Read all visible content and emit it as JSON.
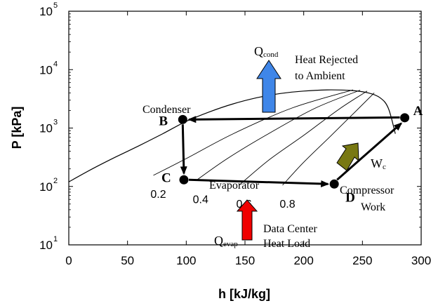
{
  "chart_data": {
    "type": "line",
    "xlabel": "h [kJ/kg]",
    "ylabel": "P [kPa]",
    "xlim": [
      0,
      300
    ],
    "ylim": [
      10,
      100000
    ],
    "y_scale": "log",
    "x_ticks": [
      "0",
      "50",
      "100",
      "150",
      "200",
      "250",
      "300"
    ],
    "y_ticks": [
      {
        "base": "10",
        "exp": "1"
      },
      {
        "base": "10",
        "exp": "2"
      },
      {
        "base": "10",
        "exp": "3"
      },
      {
        "base": "10",
        "exp": "4"
      },
      {
        "base": "10",
        "exp": "5"
      }
    ],
    "grid": false,
    "saturation_dome": {
      "x": [
        0,
        20,
        40,
        60,
        80,
        100,
        120,
        140,
        160,
        180,
        200,
        220,
        240,
        255,
        265,
        272,
        278
      ],
      "y": [
        120,
        200,
        320,
        500,
        800,
        1300,
        1900,
        2600,
        3300,
        3900,
        4300,
        4500,
        4400,
        4000,
        3300,
        2200,
        800
      ]
    },
    "quality_lines": [
      {
        "label": "0.2",
        "x": [
          72,
          100,
          140,
          190,
          242
        ],
        "y": [
          155,
          300,
          800,
          2200,
          4500
        ]
      },
      {
        "label": "0.4",
        "x": [
          108,
          135,
          170,
          210,
          248
        ],
        "y": [
          125,
          300,
          800,
          2200,
          4450
        ]
      },
      {
        "label": "0.6",
        "x": [
          145,
          170,
          200,
          230,
          254
        ],
        "y": [
          105,
          280,
          750,
          2100,
          4300
        ]
      },
      {
        "label": "0.8",
        "x": [
          182,
          200,
          222,
          245,
          260
        ],
        "y": [
          105,
          260,
          700,
          2000,
          4000
        ]
      }
    ],
    "cycle_points": [
      {
        "label": "A",
        "h": 286,
        "P": 1500
      },
      {
        "label": "B",
        "h": 97,
        "P": 1400
      },
      {
        "label": "C",
        "h": 98,
        "P": 130
      },
      {
        "label": "D",
        "h": 226,
        "P": 110
      }
    ],
    "annotations": {
      "condenser": "Condenser",
      "evaporator": "Evaporator",
      "q_cond": {
        "main": "Q",
        "sub": "cond"
      },
      "q_evap": {
        "main": "Q",
        "sub": "evap"
      },
      "w_c": {
        "main": "W",
        "sub": "c"
      },
      "heat_rejected": [
        "Heat Rejected",
        "to Ambient"
      ],
      "heat_load": [
        "Data Center",
        "Heat Load"
      ],
      "compressor": [
        "Compressor",
        "Work"
      ]
    },
    "colors": {
      "q_cond_arrow": "#3f86e8",
      "q_evap_arrow": "#f00000",
      "w_c_arrow": "#787812",
      "curves": "#000000"
    }
  }
}
